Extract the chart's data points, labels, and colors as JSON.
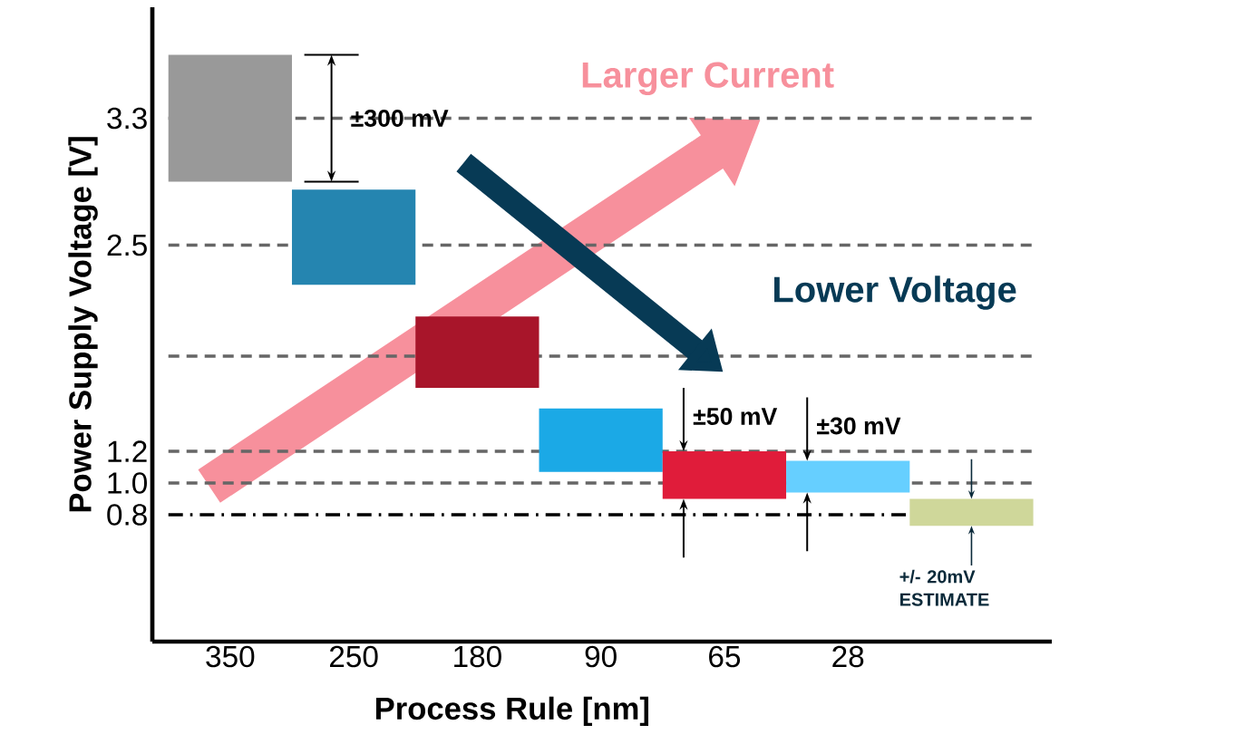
{
  "chart_data": {
    "type": "bar",
    "xlabel": "Process Rule [nm]",
    "ylabel": "Power Supply Voltage [V]",
    "categories": [
      "350",
      "250",
      "180",
      "90",
      "65",
      "28",
      null
    ],
    "base": [
      2.9,
      2.25,
      1.6,
      1.07,
      0.9,
      0.94,
      0.73
    ],
    "values": [
      0.8,
      0.6,
      0.45,
      0.4,
      0.3,
      0.2,
      0.17
    ],
    "colors": [
      "#999999",
      "#2585b0",
      "#a8152a",
      "#1ba9e6",
      "#e01c3a",
      "#66cfff",
      "#cfd79a"
    ],
    "ylim": [
      0,
      4
    ],
    "yticks": [
      3.3,
      2.5,
      {
        "value": 1.2,
        "label": "1.2"
      },
      {
        "value": 1,
        "label": "1.0"
      },
      0.8
    ],
    "grid": false,
    "ref_lines": [
      {
        "axis": "y",
        "value": 3.3,
        "color": "#666666",
        "line_style": "dashed"
      },
      {
        "axis": "y",
        "value": 2.5,
        "color": "#666666",
        "line_style": "dashed"
      },
      {
        "axis": "y",
        "value": 1.8,
        "color": "#666666",
        "line_style": "dashed"
      },
      {
        "axis": "y",
        "value": 1.2,
        "color": "#666666",
        "line_style": "dashed"
      },
      {
        "axis": "y",
        "value": 1.0,
        "color": "#666666",
        "line_style": "dashed"
      },
      {
        "axis": "y",
        "value": 0.8,
        "color": "#000000",
        "line_style": "dashdot"
      }
    ],
    "annotations": [
      "±300 mV",
      "±50 mV",
      "±30 mV",
      "+/- 20mV ESTIMATE",
      "Larger Current",
      "Lower Voltage"
    ]
  }
}
